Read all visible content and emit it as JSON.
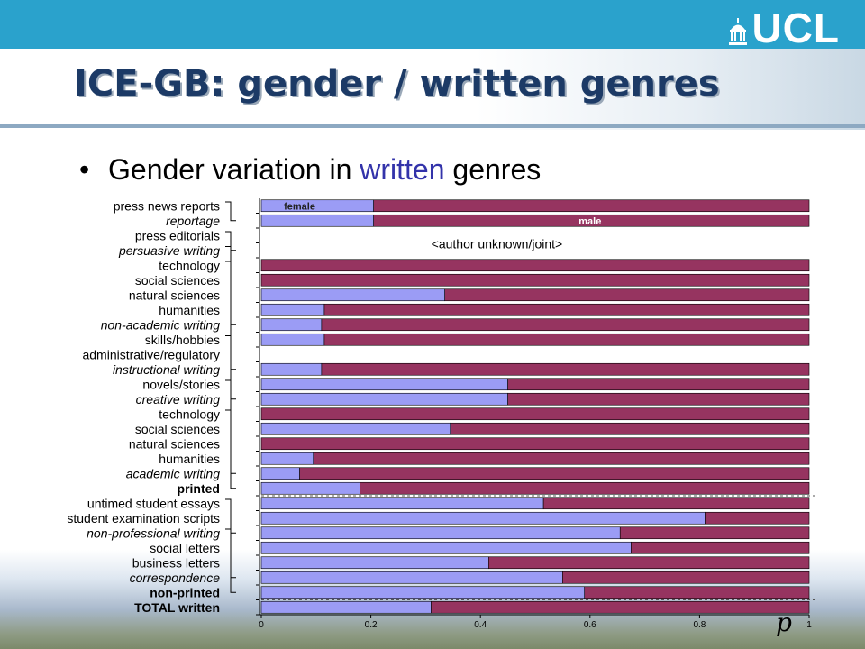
{
  "logo": {
    "text": "UCL"
  },
  "title": "ICE-GB: gender / written genres",
  "bullet": {
    "prefix": "Gender variation in ",
    "accent": "written",
    "suffix": " genres"
  },
  "colors": {
    "female": "#9b9cf5",
    "male": "#963460",
    "accent_text": "#3333aa",
    "title": "#1c3a66",
    "header_bar": "#2aa2cc"
  },
  "chart_data": {
    "type": "bar",
    "orientation": "horizontal",
    "stacked": true,
    "xlim": [
      0,
      1
    ],
    "x_ticks": [
      "0",
      "0.2",
      "0.4",
      "0.6",
      "0.8",
      "1"
    ],
    "x_axis_symbol": "p",
    "legend": {
      "female": "female",
      "male": "male"
    },
    "annotation": "<author unknown/joint>",
    "categories": [
      {
        "label": "press news reports",
        "italic": false,
        "bold": false,
        "female": 0.205
      },
      {
        "label": "reportage",
        "italic": true,
        "bold": false,
        "female": 0.205
      },
      {
        "label": "press editorials",
        "italic": false,
        "bold": false,
        "female": null
      },
      {
        "label": "persuasive writing",
        "italic": true,
        "bold": false,
        "female": null
      },
      {
        "label": "technology",
        "italic": false,
        "bold": false,
        "female": 0.0
      },
      {
        "label": "social sciences",
        "italic": false,
        "bold": false,
        "female": 0.0
      },
      {
        "label": "natural sciences",
        "italic": false,
        "bold": false,
        "female": 0.335
      },
      {
        "label": "humanities",
        "italic": false,
        "bold": false,
        "female": 0.115
      },
      {
        "label": "non-academic writing",
        "italic": true,
        "bold": false,
        "female": 0.11
      },
      {
        "label": "skills/hobbies",
        "italic": false,
        "bold": false,
        "female": 0.115
      },
      {
        "label": "administrative/regulatory",
        "italic": false,
        "bold": false,
        "female": null
      },
      {
        "label": "instructional writing",
        "italic": true,
        "bold": false,
        "female": 0.11
      },
      {
        "label": "novels/stories",
        "italic": false,
        "bold": false,
        "female": 0.45
      },
      {
        "label": "creative writing",
        "italic": true,
        "bold": false,
        "female": 0.45
      },
      {
        "label": "technology",
        "italic": false,
        "bold": false,
        "female": 0.0
      },
      {
        "label": "social sciences",
        "italic": false,
        "bold": false,
        "female": 0.345
      },
      {
        "label": "natural sciences",
        "italic": false,
        "bold": false,
        "female": 0.0
      },
      {
        "label": "humanities",
        "italic": false,
        "bold": false,
        "female": 0.095
      },
      {
        "label": "academic writing",
        "italic": true,
        "bold": false,
        "female": 0.07
      },
      {
        "label": "printed",
        "italic": false,
        "bold": true,
        "female": 0.18
      },
      {
        "label": "untimed student essays",
        "italic": false,
        "bold": false,
        "female": 0.515
      },
      {
        "label": "student examination scripts",
        "italic": false,
        "bold": false,
        "female": 0.81
      },
      {
        "label": "non-professional writing",
        "italic": true,
        "bold": false,
        "female": 0.655
      },
      {
        "label": "social letters",
        "italic": false,
        "bold": false,
        "female": 0.675
      },
      {
        "label": "business letters",
        "italic": false,
        "bold": false,
        "female": 0.415
      },
      {
        "label": "correspondence",
        "italic": true,
        "bold": false,
        "female": 0.55
      },
      {
        "label": "non-printed",
        "italic": false,
        "bold": true,
        "female": 0.59
      },
      {
        "label": "TOTAL written",
        "italic": false,
        "bold": true,
        "female": 0.31
      }
    ]
  }
}
